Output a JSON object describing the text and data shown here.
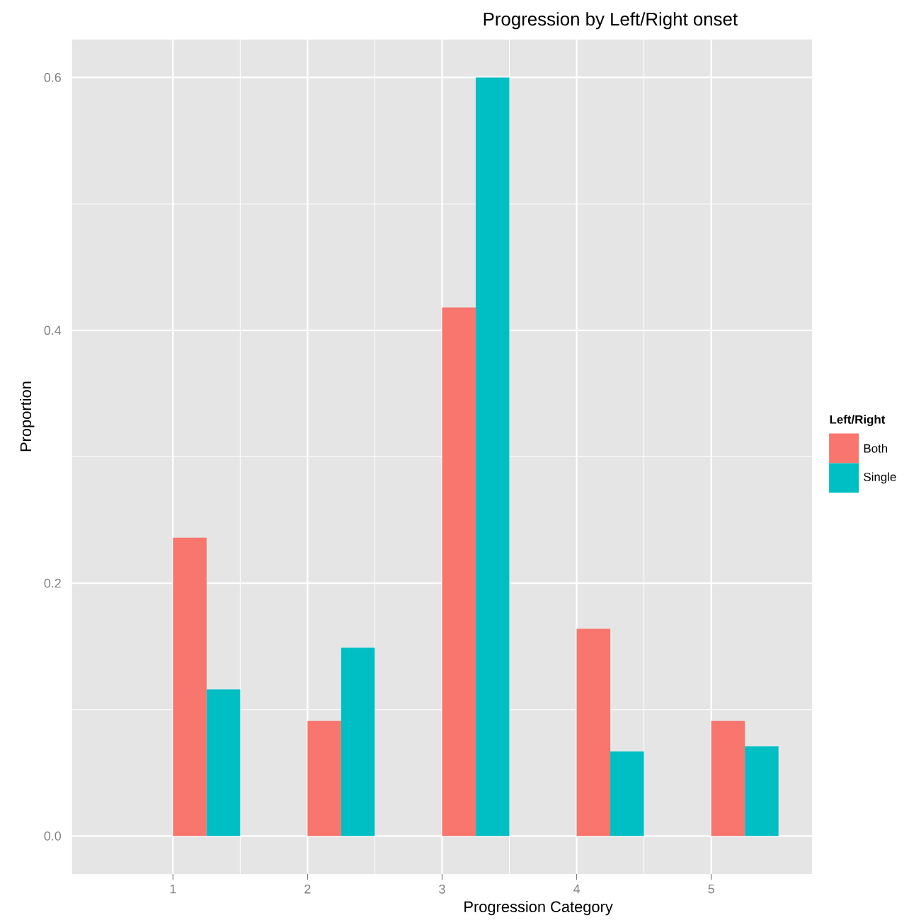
{
  "chart_data": {
    "type": "bar",
    "title": "Progression by Left/Right onset",
    "xlabel": "Progression Category",
    "ylabel": "Proportion",
    "legend_title": "Left/Right",
    "categories": [
      "1",
      "2",
      "3",
      "4",
      "5"
    ],
    "series": [
      {
        "name": "Both",
        "color": "#f8766d",
        "values": [
          0.236,
          0.091,
          0.418,
          0.164,
          0.091
        ]
      },
      {
        "name": "Single",
        "color": "#00bfc4",
        "values": [
          0.116,
          0.149,
          0.6,
          0.067,
          0.071
        ]
      }
    ],
    "ylim": [
      -0.03,
      0.63
    ],
    "yticks": [
      {
        "value": 0,
        "label": "0.0"
      },
      {
        "value": 0.2,
        "label": "0.2"
      },
      {
        "value": 0.4,
        "label": "0.4"
      },
      {
        "value": 0.6,
        "label": "0.6"
      }
    ],
    "grid": true,
    "legend": "right"
  }
}
